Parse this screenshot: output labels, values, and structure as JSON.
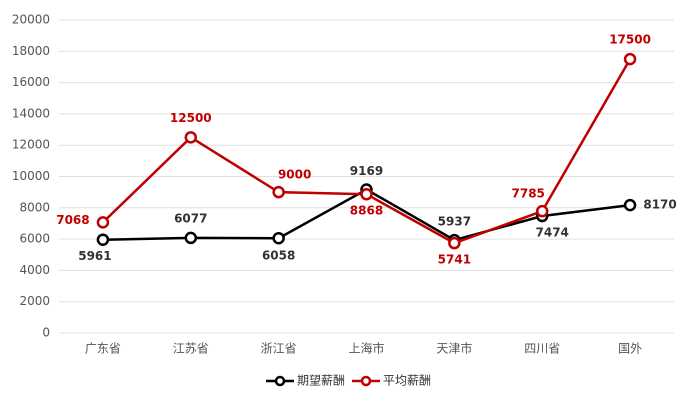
{
  "chart_data": {
    "type": "line",
    "categories": [
      "广东省",
      "江苏省",
      "浙江省",
      "上海市",
      "天津市",
      "四川省",
      "国外"
    ],
    "series": [
      {
        "name": "期望薪酬",
        "color": "#000000",
        "values": [
          5961,
          6077,
          6058,
          9169,
          5937,
          7474,
          8170
        ]
      },
      {
        "name": "平均薪酬",
        "color": "#c00000",
        "values": [
          7068,
          12500,
          9000,
          8868,
          5741,
          7785,
          17500
        ]
      }
    ],
    "ylim": [
      0,
      20000
    ],
    "yticks": [
      0,
      2000,
      4000,
      6000,
      8000,
      10000,
      12000,
      14000,
      16000,
      18000,
      20000
    ],
    "grid": true,
    "legend": "bottom"
  }
}
